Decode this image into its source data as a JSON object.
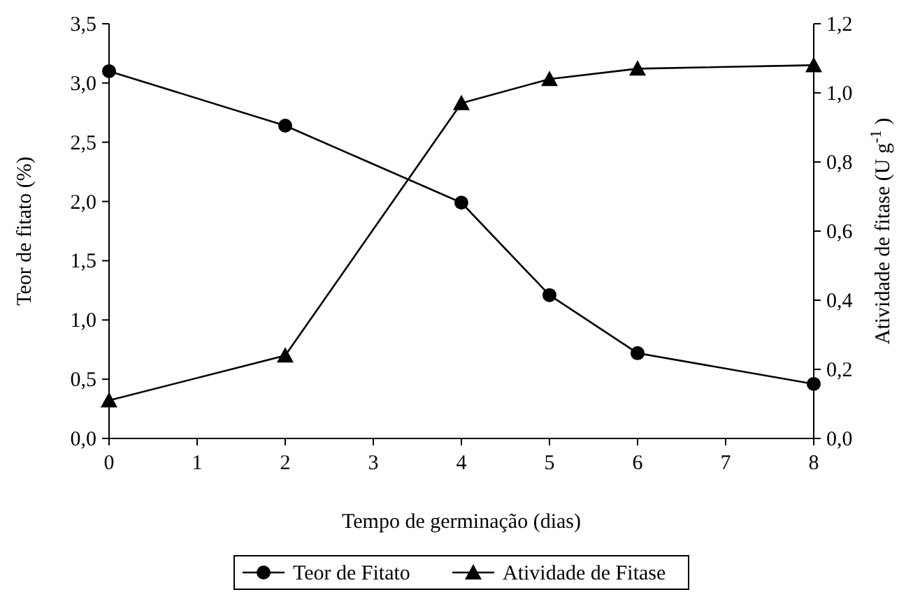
{
  "chart_data": {
    "type": "line",
    "xlabel": "Tempo de germinação (dias)",
    "ylabel": "Teor de fitato (%)",
    "y2label": "Atividade de fitase (U g$^{-1}$)",
    "x": [
      0,
      2,
      4,
      5,
      6,
      8
    ],
    "series": [
      {
        "name": "Teor de Fitato",
        "color": "#000000",
        "marker": "circle",
        "values": [
          3.1,
          2.64,
          1.99,
          1.21,
          0.72,
          0.46
        ]
      },
      {
        "name": "Atividade de Fitase",
        "color": "#000000",
        "marker": "triangle",
        "axis": "y2",
        "values": [
          0.11,
          0.24,
          0.97,
          1.04,
          1.07,
          1.08
        ]
      }
    ],
    "xlim": [
      0,
      8
    ],
    "xticks": [
      0,
      1,
      2,
      3,
      4,
      5,
      6,
      7,
      8
    ],
    "ylim": [
      0,
      3.5
    ],
    "yticks": [
      {
        "value": 0,
        "label": "0,0"
      },
      {
        "value": 0.5,
        "label": "0,5"
      },
      {
        "value": 1,
        "label": "1,0"
      },
      {
        "value": 1.5,
        "label": "1,5"
      },
      {
        "value": 2,
        "label": "2,0"
      },
      {
        "value": 2.5,
        "label": "2,5"
      },
      {
        "value": 3,
        "label": "3,0"
      },
      {
        "value": 3.5,
        "label": "3,5"
      }
    ],
    "y2lim": [
      0,
      1.2
    ],
    "y2ticks": [
      {
        "value": 0,
        "label": "0,0"
      },
      {
        "value": 0.2,
        "label": "0,2"
      },
      {
        "value": 0.4,
        "label": "0,4"
      },
      {
        "value": 0.6,
        "label": "0,6"
      },
      {
        "value": 0.8,
        "label": "0,8"
      },
      {
        "value": 1,
        "label": "1,0"
      },
      {
        "value": 1.2,
        "label": "1,2"
      }
    ],
    "grid": false,
    "legend": "bottom",
    "line_style": "solid"
  }
}
